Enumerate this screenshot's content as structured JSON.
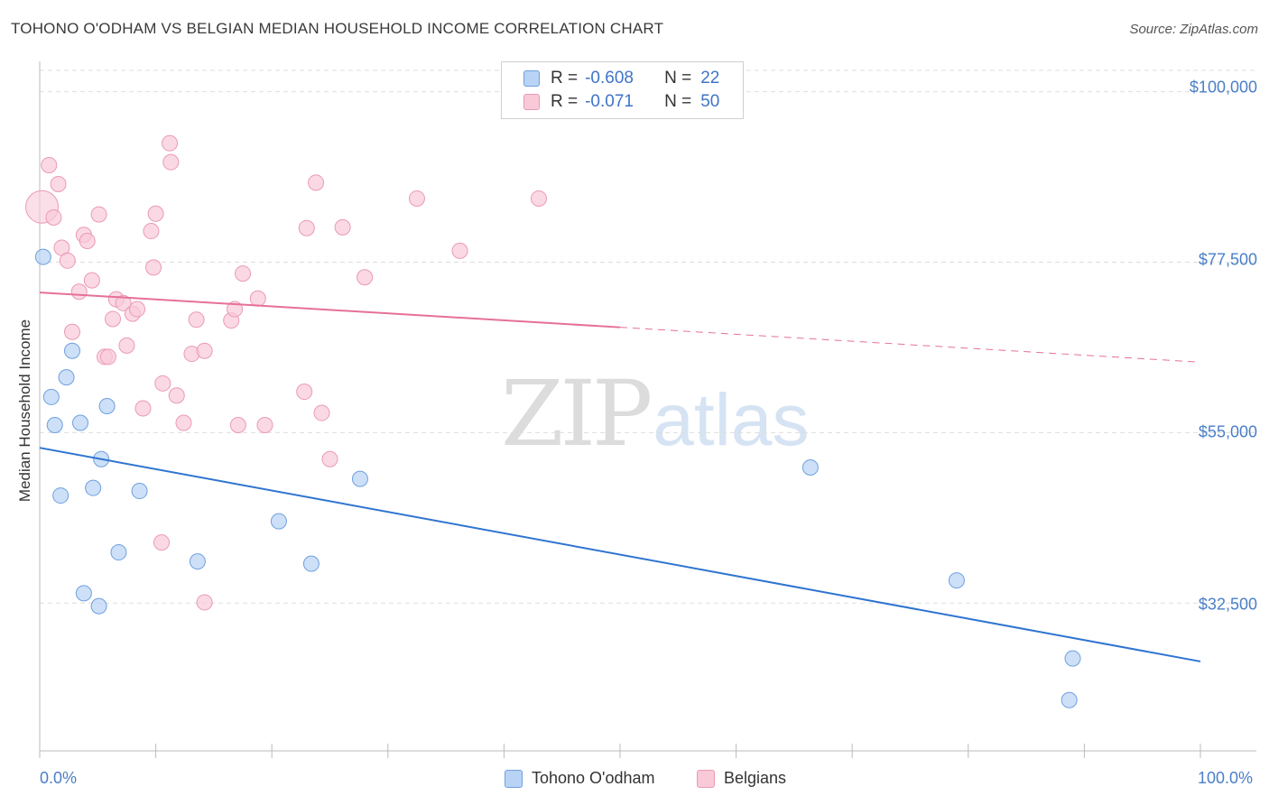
{
  "header": {
    "title": "TOHONO O'ODHAM VS BELGIAN MEDIAN HOUSEHOLD INCOME CORRELATION CHART",
    "source": "Source: ZipAtlas.com"
  },
  "legend": {
    "series": [
      {
        "r_label": "R =",
        "r_value": "-0.608",
        "n_label": "N =",
        "n_value": "22"
      },
      {
        "r_label": "R =",
        "r_value": "-0.071",
        "n_label": "N =",
        "n_value": "50"
      }
    ]
  },
  "bottom_legend": [
    "Tohono O'odham",
    "Belgians"
  ],
  "watermark": {
    "zip": "ZIP",
    "atlas": "atlas"
  },
  "colors": {
    "tohono_fill": "#b8d3f5",
    "tohono_stroke": "#6fa0de",
    "tohono_line": "#2f74d0",
    "belgian_fill": "#f9c9d8",
    "belgian_stroke": "#ea9ab4",
    "belgian_line": "#e5709a",
    "grid": "#dddddd",
    "tick_text": "#4a7fc8"
  },
  "chart_data": {
    "type": "scatter",
    "title": "TOHONO O'ODHAM VS BELGIAN MEDIAN HOUSEHOLD INCOME CORRELATION CHART",
    "xlabel": "",
    "ylabel": "Median Household Income",
    "xlim": [
      0,
      100
    ],
    "ylim": [
      13000,
      104000
    ],
    "x_tick_labels": [
      "0.0%",
      "100.0%"
    ],
    "y_ticks": [
      32500,
      55000,
      77500,
      100000
    ],
    "y_tick_labels": [
      "$32,500",
      "$55,000",
      "$77,500",
      "$100,000"
    ],
    "grid": true,
    "legend_position": "top-center",
    "series": [
      {
        "name": "Tohono O'odham",
        "r": -0.608,
        "n": 22,
        "trend": {
          "x": [
            0,
            100
          ],
          "y": [
            53000,
            24800
          ],
          "dashed_from": null
        },
        "points": [
          [
            0.3,
            78200
          ],
          [
            2.8,
            65800
          ],
          [
            1.0,
            59700
          ],
          [
            2.3,
            62300
          ],
          [
            1.3,
            56000
          ],
          [
            3.5,
            56300
          ],
          [
            5.8,
            58500
          ],
          [
            5.3,
            51500
          ],
          [
            4.6,
            47700
          ],
          [
            8.6,
            47300
          ],
          [
            1.8,
            46700
          ],
          [
            6.8,
            39200
          ],
          [
            13.6,
            38000
          ],
          [
            20.6,
            43300
          ],
          [
            23.4,
            37700
          ],
          [
            27.6,
            48900
          ],
          [
            3.8,
            33800
          ],
          [
            5.1,
            32100
          ],
          [
            66.4,
            50400
          ],
          [
            79.0,
            35500
          ],
          [
            89.0,
            25200
          ],
          [
            88.7,
            19700
          ]
        ]
      },
      {
        "name": "Belgians",
        "r": -0.071,
        "n": 50,
        "trend": {
          "x": [
            0,
            100
          ],
          "y": [
            73500,
            64300
          ],
          "dashed_from": 50
        },
        "points": [
          [
            0.2,
            84800
          ],
          [
            0.8,
            90300
          ],
          [
            1.6,
            87800
          ],
          [
            1.2,
            83400
          ],
          [
            1.9,
            79400
          ],
          [
            2.4,
            77700
          ],
          [
            3.8,
            81100
          ],
          [
            4.1,
            80300
          ],
          [
            5.1,
            83800
          ],
          [
            3.4,
            73600
          ],
          [
            4.5,
            75100
          ],
          [
            2.8,
            68300
          ],
          [
            6.6,
            72600
          ],
          [
            7.2,
            72100
          ],
          [
            8.0,
            70700
          ],
          [
            8.4,
            71300
          ],
          [
            6.3,
            70000
          ],
          [
            7.5,
            66500
          ],
          [
            5.6,
            65000
          ],
          [
            5.9,
            65000
          ],
          [
            9.6,
            81600
          ],
          [
            10.0,
            83900
          ],
          [
            9.8,
            76800
          ],
          [
            10.6,
            61500
          ],
          [
            8.9,
            58200
          ],
          [
            11.2,
            93200
          ],
          [
            11.8,
            59900
          ],
          [
            12.4,
            56300
          ],
          [
            13.1,
            65400
          ],
          [
            14.2,
            65800
          ],
          [
            13.5,
            69900
          ],
          [
            16.5,
            69800
          ],
          [
            16.8,
            71300
          ],
          [
            17.5,
            76000
          ],
          [
            18.8,
            72700
          ],
          [
            19.4,
            56000
          ],
          [
            17.1,
            56000
          ],
          [
            22.8,
            60400
          ],
          [
            23.0,
            82000
          ],
          [
            23.8,
            88000
          ],
          [
            26.1,
            82100
          ],
          [
            24.3,
            57600
          ],
          [
            25.0,
            51500
          ],
          [
            28.0,
            75500
          ],
          [
            32.5,
            85900
          ],
          [
            36.2,
            79000
          ],
          [
            43.0,
            85900
          ],
          [
            10.5,
            40500
          ],
          [
            11.3,
            90700
          ],
          [
            14.2,
            32600
          ]
        ]
      }
    ]
  }
}
